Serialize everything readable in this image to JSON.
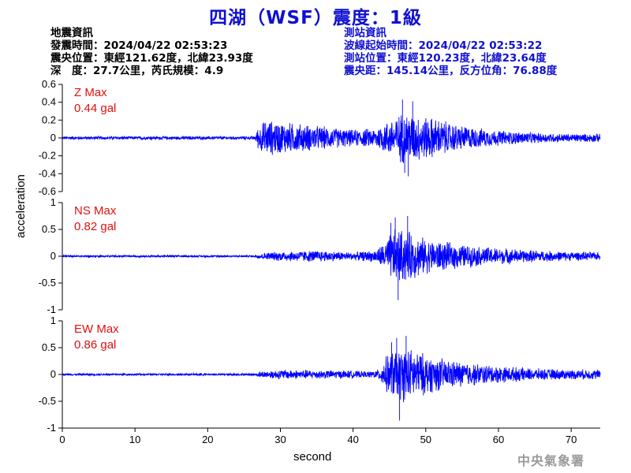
{
  "header": {
    "title": "四湖（WSF）震度：1級"
  },
  "earthquake_info": {
    "heading": "地震資訊",
    "origin_time": "發震時間：2024/04/22 02:53:23",
    "epicenter": "震央位置：東經121.62度，北緯23.93度",
    "depth_magnitude": "深　度：27.7公里，芮氏規模：4.9"
  },
  "station_info": {
    "heading": "測站資訊",
    "wave_start": "波線起始時間：2024/04/22 02:53:22",
    "location": "測站位置：東經120.23度，北緯23.64度",
    "distance": "震央距：145.14公里，反方位角：76.88度"
  },
  "footer": {
    "agency": "中央氣象署"
  },
  "colors": {
    "trace": "#0000ff",
    "title": "#1010d0",
    "max_label": "#e01010",
    "axis": "#000000"
  },
  "chart_data": {
    "type": "line",
    "xlabel": "second",
    "ylabel": "acceleration",
    "xlim": [
      0,
      74
    ],
    "xticks": [
      0,
      10,
      20,
      30,
      40,
      50,
      60,
      70
    ],
    "grid": false,
    "panels": [
      {
        "component": "Z",
        "max_label": "Z Max",
        "max_value": "0.44 gal",
        "ylim": [
          -0.6,
          0.6
        ],
        "yticks": [
          0.6,
          0.4,
          0.2,
          0,
          -0.2,
          -0.4,
          -0.6
        ],
        "ytick_labels": [
          "0.6",
          "0.4",
          "0.2",
          "0",
          "-0.2",
          "-0.4",
          "-0.6"
        ],
        "envelope": [
          [
            0,
            0.02
          ],
          [
            26.5,
            0.02
          ],
          [
            27,
            0.15
          ],
          [
            28,
            0.22
          ],
          [
            30,
            0.2
          ],
          [
            33,
            0.17
          ],
          [
            36,
            0.14
          ],
          [
            40,
            0.1
          ],
          [
            43,
            0.12
          ],
          [
            45,
            0.22
          ],
          [
            47,
            0.32
          ],
          [
            49,
            0.28
          ],
          [
            51,
            0.25
          ],
          [
            54,
            0.17
          ],
          [
            58,
            0.11
          ],
          [
            62,
            0.08
          ],
          [
            66,
            0.06
          ],
          [
            70,
            0.05
          ],
          [
            74,
            0.05
          ]
        ],
        "peaks": [
          [
            46.8,
            0.43
          ],
          [
            47.6,
            -0.43
          ],
          [
            48.2,
            0.41
          ],
          [
            47.1,
            -0.39
          ]
        ]
      },
      {
        "component": "NS",
        "max_label": "NS Max",
        "max_value": "0.82 gal",
        "ylim": [
          -1,
          1
        ],
        "yticks": [
          1,
          0.5,
          0,
          -0.5,
          -1
        ],
        "ytick_labels": [
          "1",
          "0.5",
          "0",
          "-0.5",
          "-1"
        ],
        "envelope": [
          [
            0,
            0.02
          ],
          [
            26.5,
            0.02
          ],
          [
            27,
            0.06
          ],
          [
            30,
            0.1
          ],
          [
            35,
            0.12
          ],
          [
            40,
            0.08
          ],
          [
            43,
            0.12
          ],
          [
            44.5,
            0.3
          ],
          [
            45.5,
            0.55
          ],
          [
            47,
            0.55
          ],
          [
            48.5,
            0.45
          ],
          [
            50,
            0.35
          ],
          [
            53,
            0.28
          ],
          [
            57,
            0.2
          ],
          [
            61,
            0.16
          ],
          [
            65,
            0.12
          ],
          [
            70,
            0.09
          ],
          [
            74,
            0.08
          ]
        ],
        "peaks": [
          [
            45.8,
            0.72
          ],
          [
            46.2,
            -0.82
          ],
          [
            47.5,
            0.75
          ],
          [
            45.2,
            0.62
          ]
        ]
      },
      {
        "component": "EW",
        "max_label": "EW Max",
        "max_value": "0.86 gal",
        "ylim": [
          -1,
          1
        ],
        "yticks": [
          1,
          0.5,
          0,
          -0.5,
          -1
        ],
        "ytick_labels": [
          "1",
          "0.5",
          "0",
          "-0.5",
          "-1"
        ],
        "envelope": [
          [
            0,
            0.02
          ],
          [
            26.5,
            0.02
          ],
          [
            27,
            0.06
          ],
          [
            30,
            0.1
          ],
          [
            35,
            0.09
          ],
          [
            40,
            0.08
          ],
          [
            42,
            0.06
          ],
          [
            43.5,
            0.1
          ],
          [
            44.5,
            0.35
          ],
          [
            45.5,
            0.5
          ],
          [
            47,
            0.55
          ],
          [
            48.5,
            0.5
          ],
          [
            50,
            0.4
          ],
          [
            53,
            0.3
          ],
          [
            57,
            0.22
          ],
          [
            61,
            0.16
          ],
          [
            65,
            0.12
          ],
          [
            70,
            0.1
          ],
          [
            74,
            0.1
          ]
        ],
        "peaks": [
          [
            46.0,
            0.68
          ],
          [
            46.4,
            -0.86
          ],
          [
            47.3,
            0.72
          ],
          [
            45.3,
            0.6
          ]
        ]
      }
    ]
  }
}
